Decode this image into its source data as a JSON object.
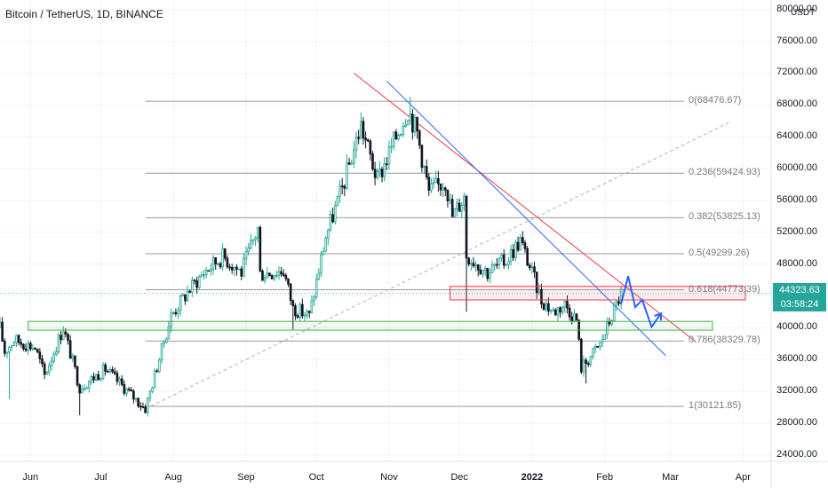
{
  "header": {
    "title": "Bitcoin / TetherUS, 1D, BINANCE",
    "unit": "USDT"
  },
  "price_tag": {
    "price": "44323.63",
    "countdown": "03:58:24",
    "color": "#26a69a"
  },
  "colors": {
    "up": "#26a69a",
    "down": "#131722",
    "upBody": "#e8f7ee",
    "fib": "#9598a1",
    "redLine": "#f23645",
    "blueLine": "#2962ff",
    "redZone": "#f23645",
    "greenZone": "#4caf50",
    "projection": "#2962ff",
    "diag": "#b2b5be"
  },
  "chart_data": {
    "type": "candlestick",
    "title": "Bitcoin / TetherUS, 1D, BINANCE",
    "y_ticks": [
      80000,
      76000,
      72000,
      68000,
      64000,
      60000,
      56000,
      52000,
      48000,
      44000,
      40000,
      36000,
      32000,
      28000,
      24000
    ],
    "y_tick_labels": [
      "80000.00",
      "76000.00",
      "72000.00",
      "68000.00",
      "64000.00",
      "60000.00",
      "56000.00",
      "52000.00",
      "48000.00",
      "44000.00",
      "40000.00",
      "36000.00",
      "32000.00",
      "28000.00",
      "24000.00"
    ],
    "x_ticks": [
      "2021-06-01",
      "2021-07-01",
      "2021-08-01",
      "2021-09-01",
      "2021-10-01",
      "2021-11-01",
      "2021-12-01",
      "2022-01-01",
      "2022-02-01",
      "2022-03-01",
      "2022-04-01"
    ],
    "x_tick_labels": [
      "Jun",
      "Jul",
      "Aug",
      "Sep",
      "Oct",
      "Nov",
      "Dec",
      "2022",
      "Feb",
      "Mar",
      "Apr"
    ],
    "ylim": [
      23200,
      81200
    ],
    "xlim": [
      "2021-05-19",
      "2022-04-13"
    ],
    "fibonacci": [
      {
        "level": "0",
        "value": 68476.67
      },
      {
        "level": "0.236",
        "value": 59424.93
      },
      {
        "level": "0.382",
        "value": 53825.13
      },
      {
        "level": "0.5",
        "value": 49299.26
      },
      {
        "level": "0.618",
        "value": 44773.39
      },
      {
        "level": "0.786",
        "value": 38329.78
      },
      {
        "level": "1",
        "value": 30121.85
      }
    ],
    "anchors": [
      {
        "date": "2021-05-19",
        "price": 40000
      },
      {
        "date": "2021-05-21",
        "price": 37000
      },
      {
        "date": "2021-05-25",
        "price": 38500
      },
      {
        "date": "2021-06-03",
        "price": 37500
      },
      {
        "date": "2021-06-07",
        "price": 34000
      },
      {
        "date": "2021-06-15",
        "price": 40000
      },
      {
        "date": "2021-06-22",
        "price": 32500
      },
      {
        "date": "2021-07-03",
        "price": 34800
      },
      {
        "date": "2021-07-20",
        "price": 29800
      },
      {
        "date": "2021-07-31",
        "price": 41500
      },
      {
        "date": "2021-08-07",
        "price": 44500
      },
      {
        "date": "2021-08-14",
        "price": 47000
      },
      {
        "date": "2021-08-22",
        "price": 49000
      },
      {
        "date": "2021-08-30",
        "price": 47000
      },
      {
        "date": "2021-09-06",
        "price": 52500
      },
      {
        "date": "2021-09-07",
        "price": 46800
      },
      {
        "date": "2021-09-17",
        "price": 47200
      },
      {
        "date": "2021-09-21",
        "price": 42500
      },
      {
        "date": "2021-09-28",
        "price": 41500
      },
      {
        "date": "2021-10-05",
        "price": 51500
      },
      {
        "date": "2021-10-12",
        "price": 57500
      },
      {
        "date": "2021-10-20",
        "price": 65500
      },
      {
        "date": "2021-10-27",
        "price": 58500
      },
      {
        "date": "2021-11-09",
        "price": 67500
      },
      {
        "date": "2021-11-13",
        "price": 64500
      },
      {
        "date": "2021-11-18",
        "price": 57000
      },
      {
        "date": "2021-11-25",
        "price": 58500
      },
      {
        "date": "2021-11-28",
        "price": 54000
      },
      {
        "date": "2021-12-03",
        "price": 56500
      },
      {
        "date": "2021-12-04",
        "price": 49200
      },
      {
        "date": "2021-12-13",
        "price": 47000
      },
      {
        "date": "2021-12-21",
        "price": 48500
      },
      {
        "date": "2021-12-27",
        "price": 51000
      },
      {
        "date": "2022-01-05",
        "price": 43500
      },
      {
        "date": "2022-01-10",
        "price": 42000
      },
      {
        "date": "2022-01-15",
        "price": 43000
      },
      {
        "date": "2022-01-20",
        "price": 41000
      },
      {
        "date": "2022-01-22",
        "price": 35000
      },
      {
        "date": "2022-01-30",
        "price": 37900
      },
      {
        "date": "2022-02-04",
        "price": 41500
      },
      {
        "date": "2022-02-08",
        "price": 44300
      }
    ],
    "spikes": [
      {
        "date": "2021-12-04",
        "low": 42000
      },
      {
        "date": "2021-05-23",
        "low": 31000
      },
      {
        "date": "2021-06-22",
        "low": 29000
      },
      {
        "date": "2021-07-20",
        "low": 29300
      },
      {
        "date": "2022-01-24",
        "low": 33000
      },
      {
        "date": "2021-09-21",
        "low": 39800
      },
      {
        "date": "2021-11-10",
        "high": 69000
      },
      {
        "date": "2021-09-07",
        "high": 52900
      }
    ],
    "zones": [
      {
        "name": "resistance",
        "y1": 43500,
        "y2": 45200,
        "x1": "2021-11-27",
        "x2": "2022-04-02",
        "color": "#f23645"
      },
      {
        "name": "support",
        "y1": 39700,
        "y2": 40800,
        "x1": "2021-05-31",
        "x2": "2022-03-19",
        "color": "#4caf50"
      }
    ],
    "trendlines": [
      {
        "color": "#f23645",
        "p1": {
          "date": "2021-10-17",
          "price": 72000
        },
        "p2": {
          "date": "2022-03-12",
          "price": 38200
        }
      },
      {
        "color": "#2962ff",
        "p1": {
          "date": "2021-10-31",
          "price": 71000
        },
        "p2": {
          "date": "2022-02-27",
          "price": 36500
        }
      },
      {
        "color": "#b2b5be",
        "dashed": true,
        "p1": {
          "date": "2021-07-20",
          "price": 29800
        },
        "p2": {
          "date": "2022-03-26",
          "price": 65800
        }
      }
    ],
    "projection": [
      {
        "date": "2022-02-08",
        "price": 43000
      },
      {
        "date": "2022-02-11",
        "price": 46500
      },
      {
        "date": "2022-02-14",
        "price": 42600
      },
      {
        "date": "2022-02-17",
        "price": 43500
      },
      {
        "date": "2022-02-21",
        "price": 40100
      },
      {
        "date": "2022-02-25",
        "price": 41800
      }
    ],
    "last_price": 44323.63,
    "price_line_color": "#26a69a"
  }
}
